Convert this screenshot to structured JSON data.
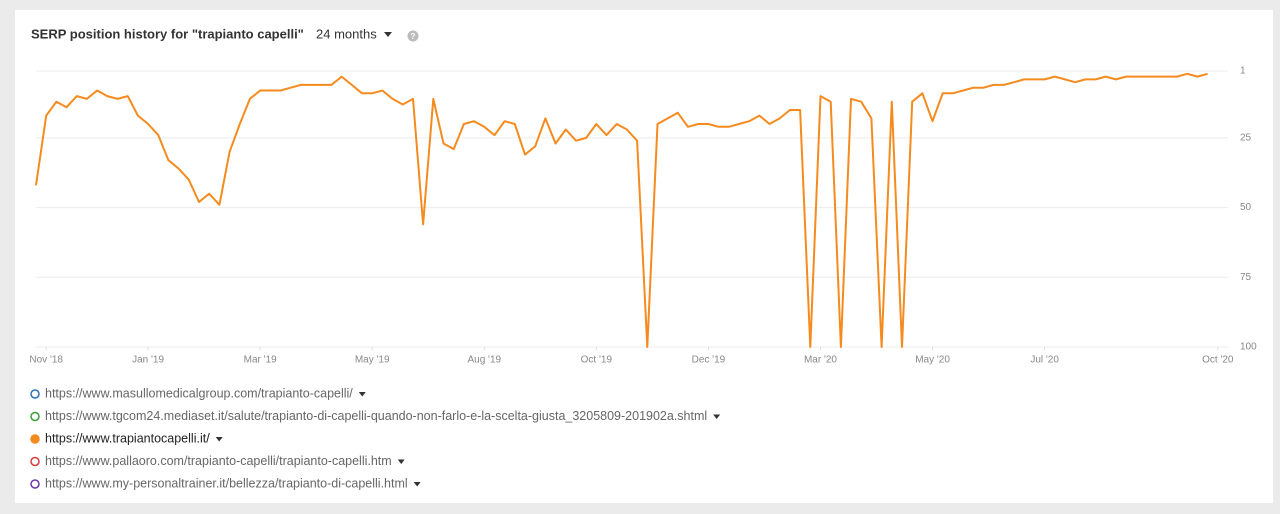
{
  "chart_data": {
    "type": "line",
    "title": "SERP position history for \"trapianto capelli\"",
    "period": "24 months",
    "y_inverted": true,
    "ylim": [
      1,
      100
    ],
    "yticks": [
      1,
      25,
      50,
      75,
      100
    ],
    "grid": true,
    "xlim": [
      0,
      117
    ],
    "xticks": [
      {
        "value": 1,
        "label": "Nov '18"
      },
      {
        "value": 11,
        "label": "Jan '19"
      },
      {
        "value": 22,
        "label": "Mar '19"
      },
      {
        "value": 33,
        "label": "May '19"
      },
      {
        "value": 44,
        "label": "Aug '19"
      },
      {
        "value": 55,
        "label": "Oct '19"
      },
      {
        "value": 66,
        "label": "Dec '19"
      },
      {
        "value": 77,
        "label": "Mar '20"
      },
      {
        "value": 88,
        "label": "May '20"
      },
      {
        "value": 99,
        "label": "Jul '20"
      },
      {
        "value": 116,
        "label": "Oct '20"
      }
    ],
    "series": [
      {
        "name": "https://www.trapiantocapelli.it/",
        "color": "#f58b1f",
        "values": [
          42,
          17,
          12,
          14,
          10,
          11,
          8,
          10,
          11,
          10,
          17,
          20,
          24,
          33,
          36,
          40,
          48,
          45,
          49,
          30,
          20,
          11,
          8,
          8,
          8,
          7,
          6,
          6,
          6,
          6,
          3,
          6,
          9,
          9,
          8,
          11,
          13,
          11,
          56,
          11,
          27,
          29,
          20,
          19,
          21,
          24,
          19,
          20,
          31,
          28,
          18,
          27,
          22,
          26,
          25,
          20,
          24,
          20,
          22,
          26,
          100,
          20,
          18,
          16,
          21,
          20,
          20,
          21,
          21,
          20,
          19,
          17,
          20,
          18,
          15,
          15,
          100,
          10,
          12,
          100,
          11,
          12,
          18,
          100,
          12,
          100,
          12,
          9,
          19,
          9,
          9,
          8,
          7,
          7,
          6,
          6,
          5,
          4,
          4,
          4,
          3,
          4,
          5,
          4,
          4,
          3,
          4,
          3,
          3,
          3,
          3,
          3,
          3,
          2,
          3,
          2,
          null,
          null
        ]
      }
    ],
    "legend": [
      {
        "name": "https://www.masullomedicalgroup.com/trapianto-capelli/",
        "color": "#2f6fb5",
        "filled": false
      },
      {
        "name": "https://www.tgcom24.mediaset.it/salute/trapianto-di-capelli-quando-non-farlo-e-la-scelta-giusta_3205809-201902a.shtml",
        "color": "#3a9d3a",
        "filled": false
      },
      {
        "name": "https://www.trapiantocapelli.it/",
        "color": "#f58b1f",
        "filled": true
      },
      {
        "name": "https://www.pallaoro.com/trapianto-capelli/trapianto-capelli.htm",
        "color": "#d33a3a",
        "filled": false
      },
      {
        "name": "https://www.my-personaltrainer.it/bellezza/trapianto-di-capelli.html",
        "color": "#6a3aa8",
        "filled": false
      }
    ]
  }
}
